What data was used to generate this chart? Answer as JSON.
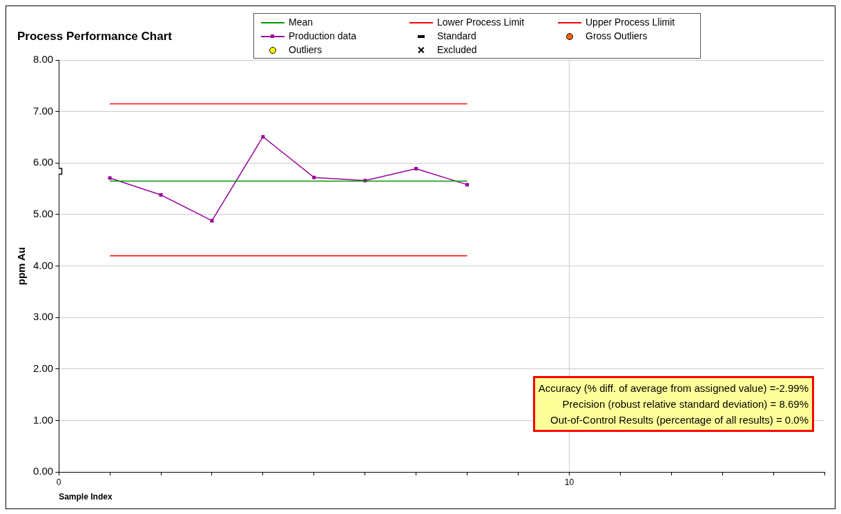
{
  "chart_data": {
    "type": "line",
    "title": "Process Performance Chart",
    "xlabel": "Sample Index",
    "ylabel": "ppm Au",
    "xlim": [
      0,
      15
    ],
    "xticks": [
      0,
      {
        "value": 1,
        "label": null
      },
      {
        "value": 2,
        "label": null
      },
      {
        "value": 3,
        "label": null
      },
      {
        "value": 4,
        "label": null
      },
      {
        "value": 5,
        "label": null
      },
      {
        "value": 6,
        "label": null
      },
      {
        "value": 7,
        "label": null
      },
      {
        "value": 8,
        "label": null
      },
      {
        "value": 9,
        "label": null
      },
      10,
      {
        "value": 11,
        "label": null
      },
      {
        "value": 12,
        "label": null
      },
      {
        "value": 13,
        "label": null
      },
      {
        "value": 14,
        "label": null
      },
      {
        "value": 15,
        "label": null
      }
    ],
    "ylim": [
      0,
      8
    ],
    "yticks": [
      {
        "value": 0,
        "label": "0.00"
      },
      {
        "value": 1,
        "label": "1.00"
      },
      {
        "value": 2,
        "label": "2.00"
      },
      {
        "value": 3,
        "label": "3.00"
      },
      {
        "value": 4,
        "label": "4.00"
      },
      {
        "value": 5,
        "label": "5.00"
      },
      {
        "value": 6,
        "label": "6.00"
      },
      {
        "value": 7,
        "label": "7.00"
      },
      {
        "value": 8,
        "label": "8.00"
      }
    ],
    "grid": true,
    "legend": "top",
    "series": [
      {
        "name": "Mean",
        "color": "#009900",
        "marker": "none",
        "x": [
          1,
          8
        ],
        "values": [
          5.65,
          5.65
        ]
      },
      {
        "name": "Lower Process Limit",
        "color": "#ff0000",
        "marker": "none",
        "x": [
          1,
          8
        ],
        "values": [
          4.2,
          4.2
        ]
      },
      {
        "name": "Upper Process Llimit",
        "color": "#ff0000",
        "marker": "none",
        "x": [
          1,
          8
        ],
        "values": [
          7.15,
          7.15
        ]
      },
      {
        "name": "Production data",
        "color": "#990099",
        "marker": "square",
        "x": [
          1,
          2,
          3,
          4,
          5,
          6,
          7,
          8
        ],
        "values": [
          5.71,
          5.38,
          4.88,
          6.51,
          5.72,
          5.66,
          5.89,
          5.58
        ]
      },
      {
        "name": "Standard",
        "type": "scatter",
        "color": "#000000",
        "marker": "square",
        "x": [
          0
        ],
        "values": [
          5.84
        ]
      },
      {
        "name": "Gross Outliers",
        "type": "scatter",
        "color": "#ff6600",
        "marker": "circle"
      },
      {
        "name": "Outliers",
        "type": "scatter",
        "color": "#ffff00",
        "marker": "circle"
      },
      {
        "name": "Excluded",
        "type": "scatter",
        "color": "#000000",
        "marker": "cross"
      }
    ],
    "annotations": [
      "Accuracy (% diff. of average from assigned value) =-2.99%",
      "Precision (robust relative standard deviation) = 8.69%",
      "Out-of-Control Results (percentage of all results) = 0.0%"
    ]
  }
}
